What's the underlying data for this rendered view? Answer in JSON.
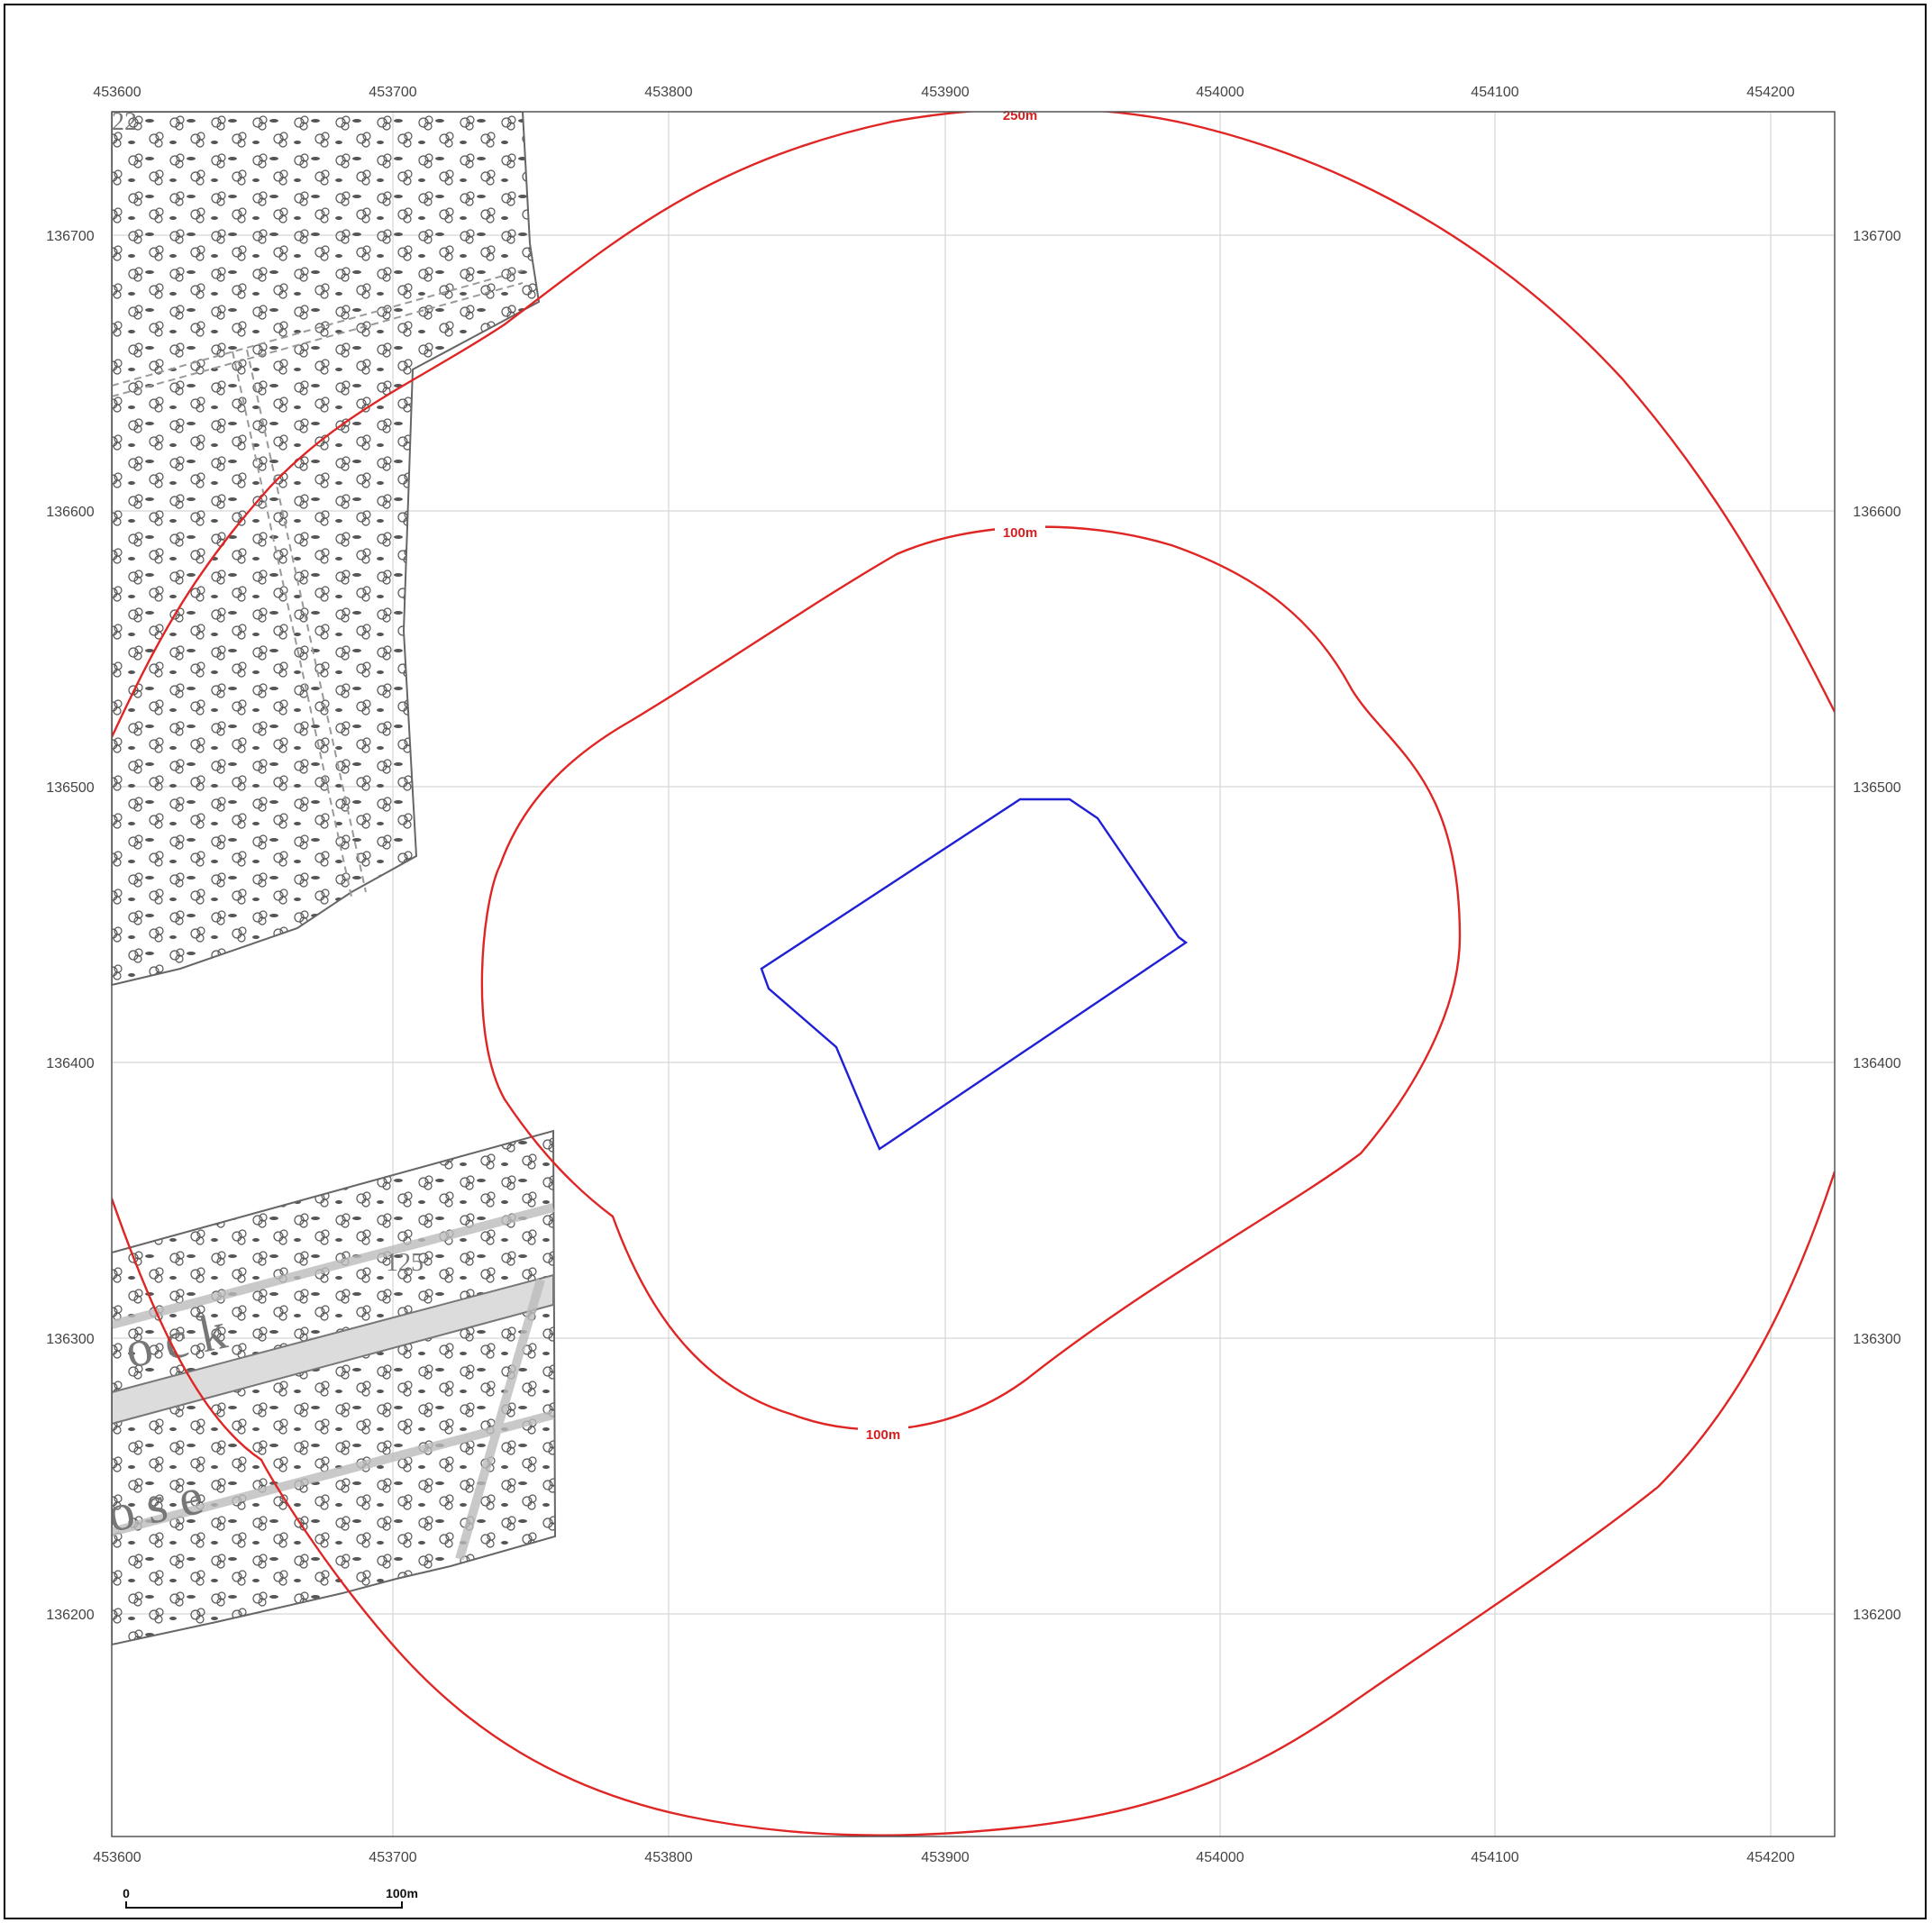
{
  "map": {
    "x_ticks": [
      "453600",
      "453700",
      "453800",
      "453900",
      "454000",
      "454100",
      "454200"
    ],
    "y_ticks": [
      "136700",
      "136600",
      "136500",
      "136400",
      "136300",
      "136200"
    ],
    "buffer_labels": {
      "outer": "250m",
      "inner_top": "100m",
      "inner_bottom": "100m"
    },
    "basemap_text": {
      "parcel_top": "22",
      "parcel_bottom": "125",
      "word_1": "o c k",
      "word_2": "o s e"
    },
    "scale_bar": {
      "start_label": "0",
      "end_label": "100m"
    },
    "colors": {
      "buffer": "#e02525",
      "site": "#1f1fd6",
      "grid": "#d6d6d6",
      "woodland": "#6b6b6b"
    }
  }
}
